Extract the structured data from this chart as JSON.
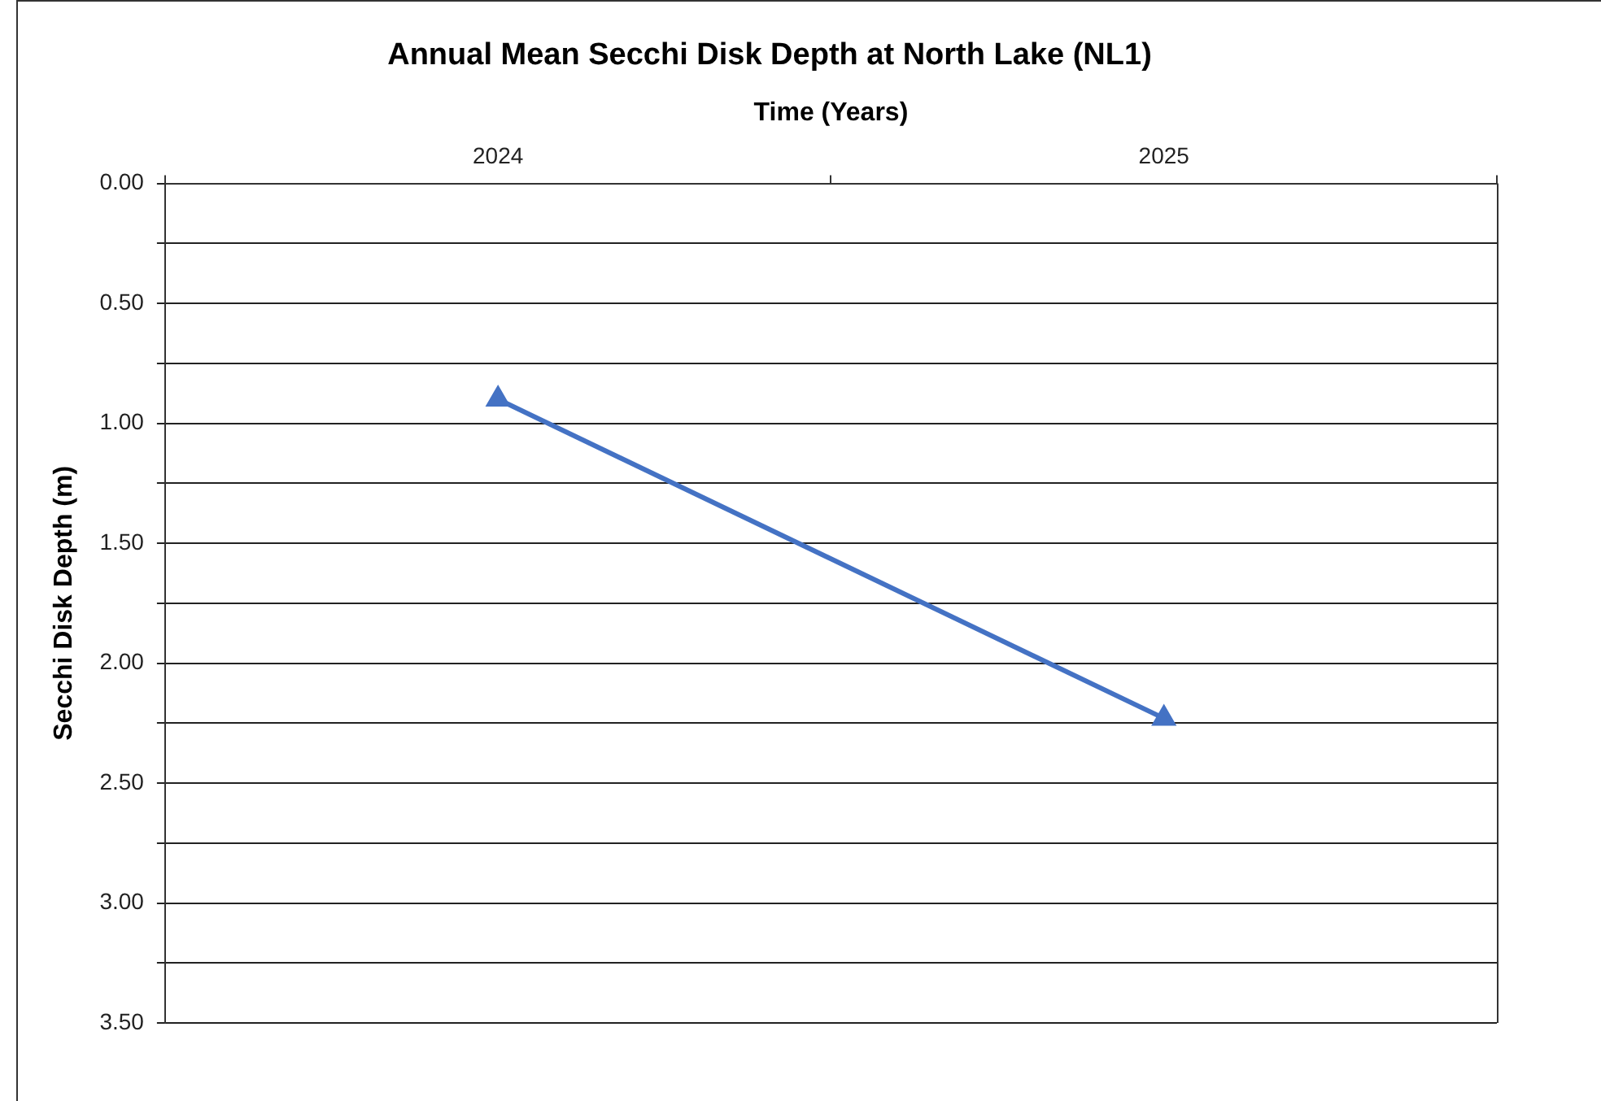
{
  "chart_data": {
    "type": "line",
    "title": "Annual Mean Secchi Disk Depth at North Lake (NL1)",
    "xlabel": "Time (Years)",
    "ylabel": "Secchi Disk Depth (m)",
    "categories": [
      "2024",
      "2025"
    ],
    "series": [
      {
        "color": "#4472c4",
        "values": [
          0.9,
          2.23
        ]
      }
    ],
    "ylim": [
      3.5,
      0
    ],
    "yticks": [
      {
        "value": 0,
        "label": "0.00"
      },
      {
        "value": 0.25,
        "label": null
      },
      {
        "value": 0.5,
        "label": "0.50"
      },
      {
        "value": 0.75,
        "label": null
      },
      {
        "value": 1,
        "label": "1.00"
      },
      {
        "value": 1.25,
        "label": null
      },
      {
        "value": 1.5,
        "label": "1.50"
      },
      {
        "value": 1.75,
        "label": null
      },
      {
        "value": 2,
        "label": "2.00"
      },
      {
        "value": 2.25,
        "label": null
      },
      {
        "value": 2.5,
        "label": "2.50"
      },
      {
        "value": 2.75,
        "label": null
      },
      {
        "value": 3,
        "label": "3.00"
      },
      {
        "value": 3.25,
        "label": null
      },
      {
        "value": 3.5,
        "label": "3.50"
      }
    ],
    "grid": "y",
    "legend": false,
    "marker": "triangle",
    "line_style": "solid"
  }
}
